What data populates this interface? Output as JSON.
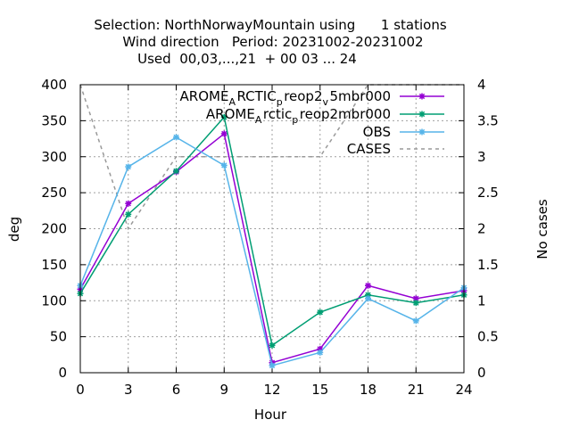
{
  "chart_data": {
    "type": "line",
    "title": [
      "Selection: NorthNorwayMountain using      1 stations",
      "Wind direction   Period: 20231002-20231002",
      "Used  00,03,...,21  + 00 03 ... 24"
    ],
    "xlabel": "Hour",
    "ylabel": "deg",
    "y2label": "No cases",
    "x": [
      0,
      3,
      6,
      9,
      12,
      15,
      18,
      21,
      24
    ],
    "xlim": [
      0,
      24
    ],
    "ylim": [
      0,
      400
    ],
    "y2lim": [
      0,
      4
    ],
    "xticks": [
      "0",
      "3",
      "6",
      "9",
      "12",
      "15",
      "18",
      "21",
      "24"
    ],
    "yticks": [
      "0",
      "50",
      "100",
      "150",
      "200",
      "250",
      "300",
      "350",
      "400"
    ],
    "y2ticks": [
      "0",
      "0.5",
      "1",
      "1.5",
      "2",
      "2.5",
      "3",
      "3.5",
      "4"
    ],
    "grid": true,
    "legend_position": "top-right",
    "series": [
      {
        "name_parts": [
          {
            "t": "AROME",
            "s": ""
          },
          {
            "t": "A",
            "s": "sub"
          },
          {
            "t": "RCTIC",
            "s": ""
          },
          {
            "t": "p",
            "s": "sub"
          },
          {
            "t": "reop2",
            "s": ""
          },
          {
            "t": "v",
            "s": "sub"
          },
          {
            "t": "5mbr000",
            "s": ""
          }
        ],
        "color": "#9400d3",
        "axis": "y1",
        "values": [
          116,
          235,
          279,
          332,
          14,
          33,
          121,
          103,
          114
        ]
      },
      {
        "name_parts": [
          {
            "t": "AROME",
            "s": ""
          },
          {
            "t": "A",
            "s": "sub"
          },
          {
            "t": "rctic",
            "s": ""
          },
          {
            "t": "p",
            "s": "sub"
          },
          {
            "t": "reop2mbr000",
            "s": ""
          }
        ],
        "color": "#009e73",
        "axis": "y1",
        "values": [
          110,
          220,
          280,
          355,
          38,
          84,
          108,
          97,
          108
        ]
      },
      {
        "name": "OBS",
        "color": "#56b4e9",
        "axis": "y1",
        "values": [
          121,
          286,
          327,
          288,
          10,
          28,
          103,
          72,
          118
        ]
      },
      {
        "name": "CASES",
        "color": "#999999",
        "axis": "y2",
        "dashed": true,
        "values": [
          4,
          2,
          3,
          3,
          3,
          3,
          4,
          4,
          4
        ]
      }
    ]
  }
}
